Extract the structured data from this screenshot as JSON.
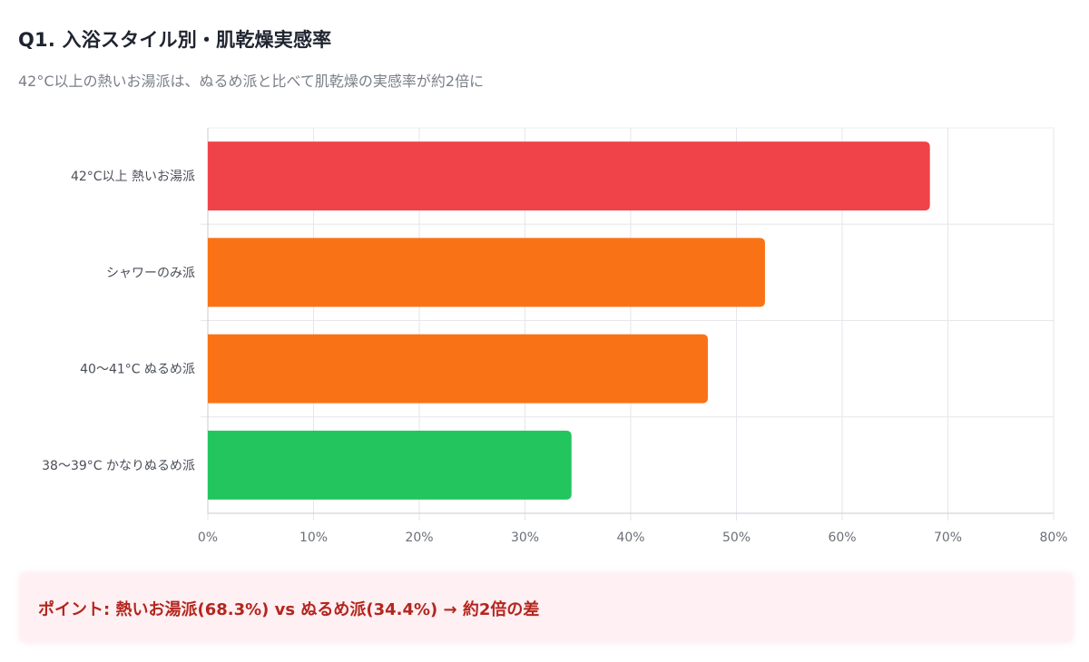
{
  "header": {
    "title": "Q1. 入浴スタイル別・肌乾燥実感率",
    "subtitle": "42°C以上の熱いお湯派は、ぬるめ派と比べて肌乾燥の実感率が約2倍に"
  },
  "callout": {
    "text": "ポイント: 熱いお湯派(68.3%) vs ぬるめ派(34.4%) → 約2倍の差"
  },
  "chart_data": {
    "type": "bar",
    "orientation": "horizontal",
    "title": "",
    "xlabel": "",
    "ylabel": "",
    "categories": [
      "42°C以上 熱いお湯派",
      "シャワーのみ派",
      "40〜41°C ぬるめ派",
      "38〜39°C かなりぬるめ派"
    ],
    "values": [
      68.3,
      52.7,
      47.3,
      34.4
    ],
    "colors": [
      "#ef4349",
      "#f97316",
      "#f97316",
      "#22c55e"
    ],
    "xlim": [
      0,
      80
    ],
    "ticks": [
      0,
      10,
      20,
      30,
      40,
      50,
      60,
      70,
      80
    ],
    "tick_labels": [
      "0%",
      "10%",
      "20%",
      "30%",
      "40%",
      "50%",
      "60%",
      "70%",
      "80%"
    ],
    "grid": true,
    "legend": "none"
  }
}
